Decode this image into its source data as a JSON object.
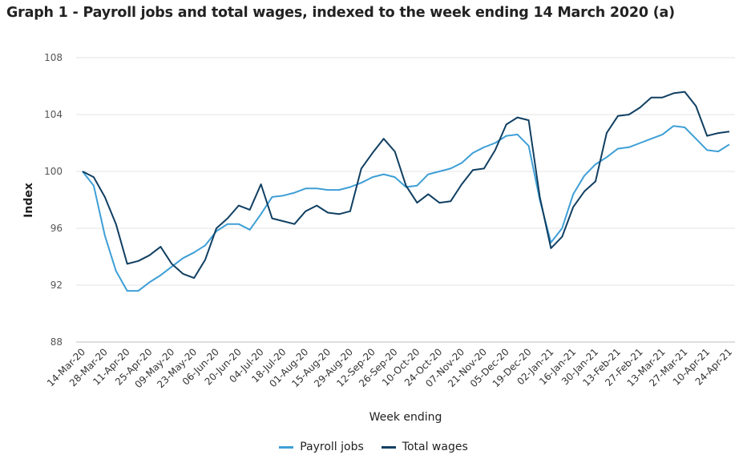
{
  "title": "Graph 1 - Payroll jobs and total wages, indexed to the week ending 14 March 2020 (a)",
  "chart_data": {
    "type": "line",
    "xlabel": "Week ending",
    "ylabel": "Index",
    "ylim": [
      88,
      108
    ],
    "yticks": [
      88,
      92,
      96,
      100,
      104,
      108
    ],
    "grid": true,
    "legend_placement": "bottom",
    "x": [
      "14-Mar-20",
      "21-Mar-20",
      "28-Mar-20",
      "04-Apr-20",
      "11-Apr-20",
      "18-Apr-20",
      "25-Apr-20",
      "02-May-20",
      "09-May-20",
      "16-May-20",
      "23-May-20",
      "30-May-20",
      "06-Jun-20",
      "13-Jun-20",
      "20-Jun-20",
      "27-Jun-20",
      "04-Jul-20",
      "11-Jul-20",
      "18-Jul-20",
      "25-Jul-20",
      "01-Aug-20",
      "08-Aug-20",
      "15-Aug-20",
      "22-Aug-20",
      "29-Aug-20",
      "05-Sep-20",
      "12-Sep-20",
      "19-Sep-20",
      "26-Sep-20",
      "03-Oct-20",
      "10-Oct-20",
      "17-Oct-20",
      "24-Oct-20",
      "31-Oct-20",
      "07-Nov-20",
      "14-Nov-20",
      "21-Nov-20",
      "28-Nov-20",
      "05-Dec-20",
      "12-Dec-20",
      "19-Dec-20",
      "26-Dec-20",
      "02-Jan-21",
      "09-Jan-21",
      "16-Jan-21",
      "23-Jan-21",
      "30-Jan-21",
      "06-Feb-21",
      "13-Feb-21",
      "20-Feb-21",
      "27-Feb-21",
      "06-Mar-21",
      "13-Mar-21",
      "20-Mar-21",
      "27-Mar-21",
      "03-Apr-21",
      "10-Apr-21",
      "17-Apr-21",
      "24-Apr-21"
    ],
    "xtick_labels": [
      "14-Mar-20",
      "28-Mar-20",
      "11-Apr-20",
      "25-Apr-20",
      "09-May-20",
      "23-May-20",
      "06-Jun-20",
      "20-Jun-20",
      "04-Jul-20",
      "18-Jul-20",
      "01-Aug-20",
      "15-Aug-20",
      "29-Aug-20",
      "12-Sep-20",
      "26-Sep-20",
      "10-Oct-20",
      "24-Oct-20",
      "07-Nov-20",
      "21-Nov-20",
      "05-Dec-20",
      "19-Dec-20",
      "02-Jan-21",
      "16-Jan-21",
      "30-Jan-21",
      "13-Feb-21",
      "27-Feb-21",
      "13-Mar-21",
      "27-Mar-21",
      "10-Apr-21",
      "24-Apr-21"
    ],
    "series": [
      {
        "name": "Payroll jobs",
        "color": "#3e9fd6",
        "values": [
          100.0,
          99.0,
          95.5,
          93.0,
          91.6,
          91.6,
          92.2,
          92.7,
          93.3,
          93.9,
          94.3,
          94.8,
          95.8,
          96.3,
          96.3,
          95.9,
          97.0,
          98.2,
          98.3,
          98.5,
          98.8,
          98.8,
          98.7,
          98.7,
          98.9,
          99.2,
          99.6,
          99.8,
          99.6,
          98.9,
          99.0,
          99.8,
          100.0,
          100.2,
          100.6,
          101.3,
          101.7,
          102.0,
          102.5,
          102.6,
          101.8,
          98.0,
          95.0,
          96.0,
          98.4,
          99.7,
          100.5,
          101.0,
          101.6,
          101.7,
          102.0,
          102.3,
          102.6,
          103.2,
          103.1,
          102.3,
          101.5,
          101.4,
          101.9
        ]
      },
      {
        "name": "Total wages",
        "color": "#103f62",
        "values": [
          100.0,
          99.6,
          98.2,
          96.3,
          93.5,
          93.7,
          94.1,
          94.7,
          93.5,
          92.8,
          92.5,
          93.8,
          96.0,
          96.7,
          97.6,
          97.3,
          99.1,
          96.7,
          96.5,
          96.3,
          97.2,
          97.6,
          97.1,
          97.0,
          97.2,
          100.2,
          101.3,
          102.3,
          101.4,
          99.0,
          97.8,
          98.4,
          97.8,
          97.9,
          99.1,
          100.1,
          100.2,
          101.5,
          103.3,
          103.8,
          103.6,
          98.2,
          94.6,
          95.4,
          97.5,
          98.6,
          99.3,
          102.7,
          103.9,
          104.0,
          104.5,
          105.2,
          105.2,
          105.5,
          105.6,
          104.6,
          102.5,
          102.7,
          102.8
        ]
      }
    ]
  }
}
